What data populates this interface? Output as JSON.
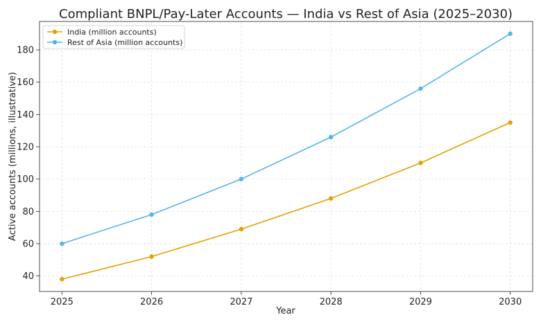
{
  "chart_data": {
    "type": "line",
    "title": "Compliant BNPL/Pay-Later Accounts — India vs Rest of Asia (2025–2030)",
    "xlabel": "Year",
    "ylabel": "Active accounts (millions, illustrative)",
    "x": [
      2025,
      2026,
      2027,
      2028,
      2029,
      2030
    ],
    "xlim": [
      2024.75,
      2030.25
    ],
    "ylim": [
      30.4,
      197.6
    ],
    "yticks": [
      40,
      60,
      80,
      100,
      120,
      140,
      160,
      180
    ],
    "grid": true,
    "legend_position": "top-left",
    "series": [
      {
        "name": "India (million accounts)",
        "color": "#E69F00",
        "values": [
          38,
          52,
          69,
          88,
          110,
          135
        ]
      },
      {
        "name": "Rest of Asia (million accounts)",
        "color": "#56B4E9",
        "values": [
          60,
          78,
          100,
          126,
          156,
          190
        ]
      }
    ]
  }
}
